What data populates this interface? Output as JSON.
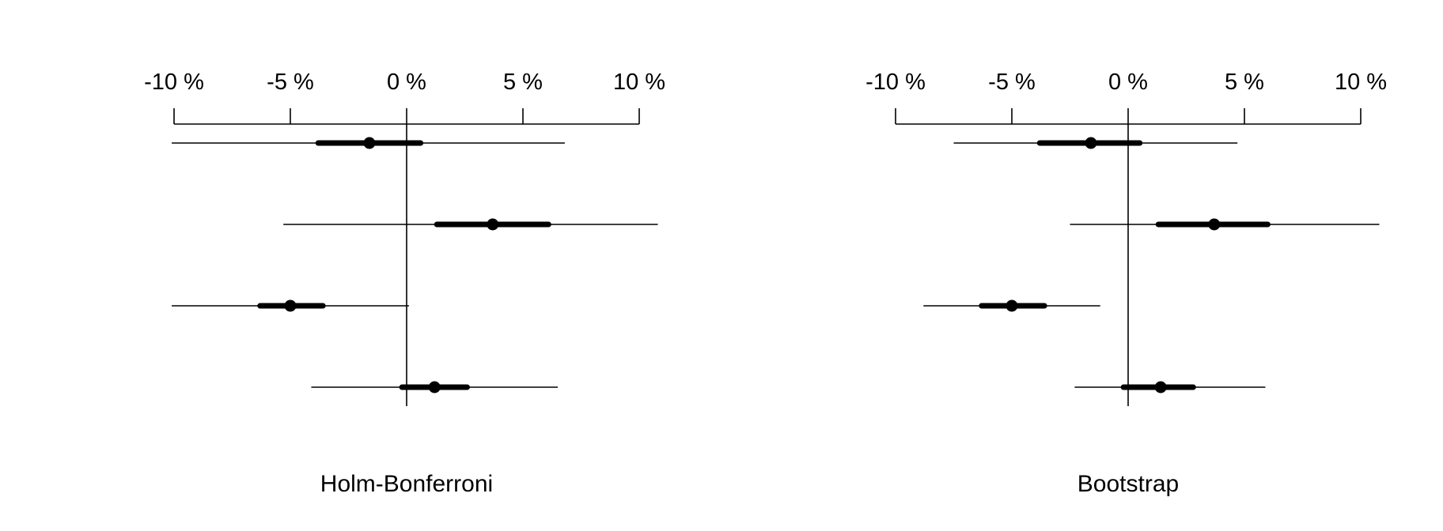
{
  "chart_data": [
    {
      "type": "forest",
      "title": "Holm-Bonferroni",
      "xlim": [
        -10,
        10
      ],
      "ticks": [
        -10,
        -5,
        0,
        5,
        10
      ],
      "tick_labels": [
        "-10 %",
        "-5 %",
        "0 %",
        "5 %",
        "10 %"
      ],
      "reference_line": 0,
      "grid": false,
      "rows": [
        {
          "estimate": -1.6,
          "inner": [
            -3.8,
            0.6
          ],
          "outer": [
            -10.1,
            6.8
          ]
        },
        {
          "estimate": 3.7,
          "inner": [
            1.3,
            6.1
          ],
          "outer": [
            -5.3,
            10.8
          ]
        },
        {
          "estimate": -5.0,
          "inner": [
            -6.3,
            -3.6
          ],
          "outer": [
            -10.1,
            0.1
          ]
        },
        {
          "estimate": 1.2,
          "inner": [
            -0.2,
            2.6
          ],
          "outer": [
            -4.1,
            6.5
          ]
        }
      ]
    },
    {
      "type": "forest",
      "title": "Bootstrap",
      "xlim": [
        -10,
        10
      ],
      "ticks": [
        -10,
        -5,
        0,
        5,
        10
      ],
      "tick_labels": [
        "-10 %",
        "-5 %",
        "0 %",
        "5 %",
        "10 %"
      ],
      "reference_line": 0,
      "grid": false,
      "rows": [
        {
          "estimate": -1.6,
          "inner": [
            -3.8,
            0.5
          ],
          "outer": [
            -7.5,
            4.7
          ]
        },
        {
          "estimate": 3.7,
          "inner": [
            1.3,
            6.0
          ],
          "outer": [
            -2.5,
            10.8
          ]
        },
        {
          "estimate": -5.0,
          "inner": [
            -6.3,
            -3.6
          ],
          "outer": [
            -8.8,
            -1.2
          ]
        },
        {
          "estimate": 1.4,
          "inner": [
            -0.2,
            2.8
          ],
          "outer": [
            -2.3,
            5.9
          ]
        }
      ]
    }
  ]
}
